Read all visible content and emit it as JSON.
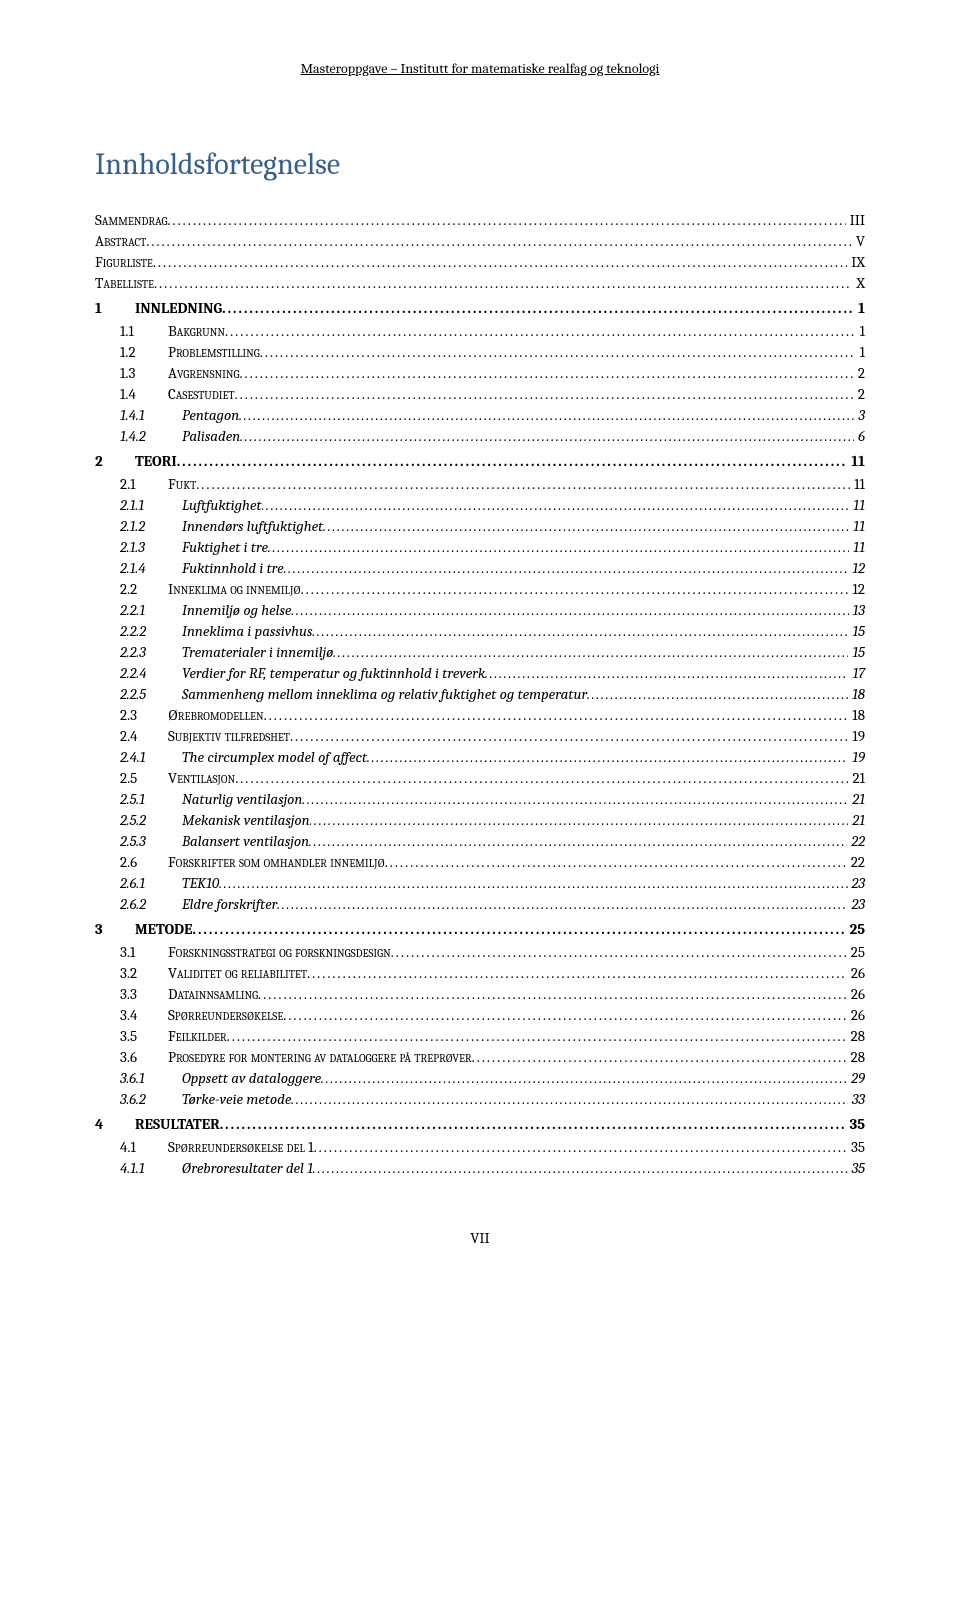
{
  "header": "Masteroppgave – Institutt for matematiske realfag og teknologi",
  "toc_title": "Innholdsfortegnelse",
  "footer": "VII",
  "entries": [
    {
      "level": 0,
      "num": "",
      "label": "Sammendrag",
      "page": "III"
    },
    {
      "level": 0,
      "num": "",
      "label": "Abstract",
      "page": "V"
    },
    {
      "level": 0,
      "num": "",
      "label": "Figurliste",
      "page": "IX"
    },
    {
      "level": 0,
      "num": "",
      "label": "Tabelliste",
      "page": "X"
    },
    {
      "level": 1,
      "num": "1",
      "label": "INNLEDNING",
      "page": "1"
    },
    {
      "level": 2,
      "num": "1.1",
      "label": "Bakgrunn",
      "page": "1"
    },
    {
      "level": 2,
      "num": "1.2",
      "label": "Problemstilling",
      "page": "1"
    },
    {
      "level": 2,
      "num": "1.3",
      "label": "Avgrensning",
      "page": "2"
    },
    {
      "level": 2,
      "num": "1.4",
      "label": "Casestudiet",
      "page": "2"
    },
    {
      "level": 3,
      "num": "1.4.1",
      "label": "Pentagon",
      "page": "3"
    },
    {
      "level": 3,
      "num": "1.4.2",
      "label": "Palisaden",
      "page": "6"
    },
    {
      "level": 1,
      "num": "2",
      "label": "TEORI",
      "page": "11"
    },
    {
      "level": 2,
      "num": "2.1",
      "label": "Fukt",
      "page": "11"
    },
    {
      "level": 3,
      "num": "2.1.1",
      "label": "Luftfuktighet",
      "page": "11"
    },
    {
      "level": 3,
      "num": "2.1.2",
      "label": "Innendørs luftfuktighet",
      "page": "11"
    },
    {
      "level": 3,
      "num": "2.1.3",
      "label": "Fuktighet i tre",
      "page": "11"
    },
    {
      "level": 3,
      "num": "2.1.4",
      "label": "Fuktinnhold i tre",
      "page": "12"
    },
    {
      "level": 2,
      "num": "2.2",
      "label": "Inneklima og innemiljø",
      "page": "12"
    },
    {
      "level": 3,
      "num": "2.2.1",
      "label": "Innemiljø og helse",
      "page": "13"
    },
    {
      "level": 3,
      "num": "2.2.2",
      "label": "Inneklima i passivhus",
      "page": "15"
    },
    {
      "level": 3,
      "num": "2.2.3",
      "label": "Trematerialer i innemiljø",
      "page": "15"
    },
    {
      "level": 3,
      "num": "2.2.4",
      "label": "Verdier for RF, temperatur og fuktinnhold i treverk",
      "page": "17"
    },
    {
      "level": 3,
      "num": "2.2.5",
      "label": "Sammenheng mellom inneklima og relativ fuktighet og temperatur",
      "page": "18"
    },
    {
      "level": 2,
      "num": "2.3",
      "label": "Ørebromodellen",
      "page": "18"
    },
    {
      "level": 2,
      "num": "2.4",
      "label": "Subjektiv tilfredshet",
      "page": "19"
    },
    {
      "level": 3,
      "num": "2.4.1",
      "label": "The circumplex model of affect",
      "page": "19"
    },
    {
      "level": 2,
      "num": "2.5",
      "label": "Ventilasjon",
      "page": "21"
    },
    {
      "level": 3,
      "num": "2.5.1",
      "label": "Naturlig ventilasjon",
      "page": "21"
    },
    {
      "level": 3,
      "num": "2.5.2",
      "label": "Mekanisk ventilasjon",
      "page": "21"
    },
    {
      "level": 3,
      "num": "2.5.3",
      "label": "Balansert ventilasjon",
      "page": "22"
    },
    {
      "level": 2,
      "num": "2.6",
      "label": "Forskrifter som omhandler innemiljø",
      "page": "22"
    },
    {
      "level": 3,
      "num": "2.6.1",
      "label": "TEK10",
      "page": "23"
    },
    {
      "level": 3,
      "num": "2.6.2",
      "label": "Eldre forskrifter",
      "page": "23"
    },
    {
      "level": 1,
      "num": "3",
      "label": "METODE",
      "page": "25"
    },
    {
      "level": 2,
      "num": "3.1",
      "label": "Forskningsstrategi og forskningsdesign",
      "page": "25"
    },
    {
      "level": 2,
      "num": "3.2",
      "label": "Validitet og reliabilitet",
      "page": "26"
    },
    {
      "level": 2,
      "num": "3.3",
      "label": "Datainnsamling",
      "page": "26"
    },
    {
      "level": 2,
      "num": "3.4",
      "label": "Spørreundersøkelse",
      "page": "26"
    },
    {
      "level": 2,
      "num": "3.5",
      "label": "Feilkilder",
      "page": "28"
    },
    {
      "level": 2,
      "num": "3.6",
      "label": "Prosedyre for montering av dataloggere på treprøver",
      "page": "28"
    },
    {
      "level": 3,
      "num": "3.6.1",
      "label": "Oppsett av dataloggere",
      "page": "29"
    },
    {
      "level": 3,
      "num": "3.6.2",
      "label": "Tørke-veie metode",
      "page": "33"
    },
    {
      "level": 1,
      "num": "4",
      "label": "RESULTATER",
      "page": "35"
    },
    {
      "level": 2,
      "num": "4.1",
      "label": "Spørreundersøkelse del 1",
      "page": "35"
    },
    {
      "level": 3,
      "num": "4.1.1",
      "label": "Ørebroresultater del 1",
      "page": "35"
    }
  ]
}
